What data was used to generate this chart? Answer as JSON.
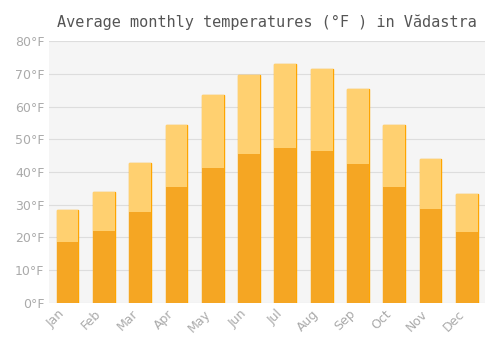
{
  "title": "Average monthly temperatures (°F ) in Vădastra",
  "months": [
    "Jan",
    "Feb",
    "Mar",
    "Apr",
    "May",
    "Jun",
    "Jul",
    "Aug",
    "Sep",
    "Oct",
    "Nov",
    "Dec"
  ],
  "values": [
    28.4,
    33.8,
    42.8,
    54.5,
    63.5,
    69.8,
    73.0,
    71.6,
    65.5,
    54.5,
    44.0,
    33.3
  ],
  "bar_color_main": "#FFA500",
  "bar_color_gradient_top": "#FFD580",
  "ylim": [
    0,
    80
  ],
  "ytick_step": 10,
  "background_color": "#ffffff",
  "plot_bg_color": "#f5f5f5",
  "grid_color": "#dddddd",
  "title_fontsize": 11,
  "tick_fontsize": 9,
  "tick_color": "#aaaaaa",
  "title_color": "#555555"
}
